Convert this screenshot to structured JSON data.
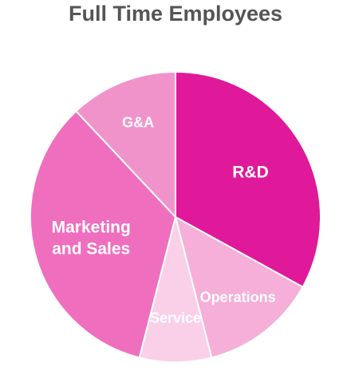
{
  "chart_data": {
    "type": "pie",
    "title": "Full Time Employees",
    "categories": [
      "R&D",
      "Operations",
      "Service",
      "Marketing and Sales",
      "G&A"
    ],
    "values": [
      33,
      13,
      8,
      34,
      12
    ],
    "colors": [
      "#e0189a",
      "#f5afd8",
      "#fad0e8",
      "#ef6fbe",
      "#f193cb"
    ]
  }
}
